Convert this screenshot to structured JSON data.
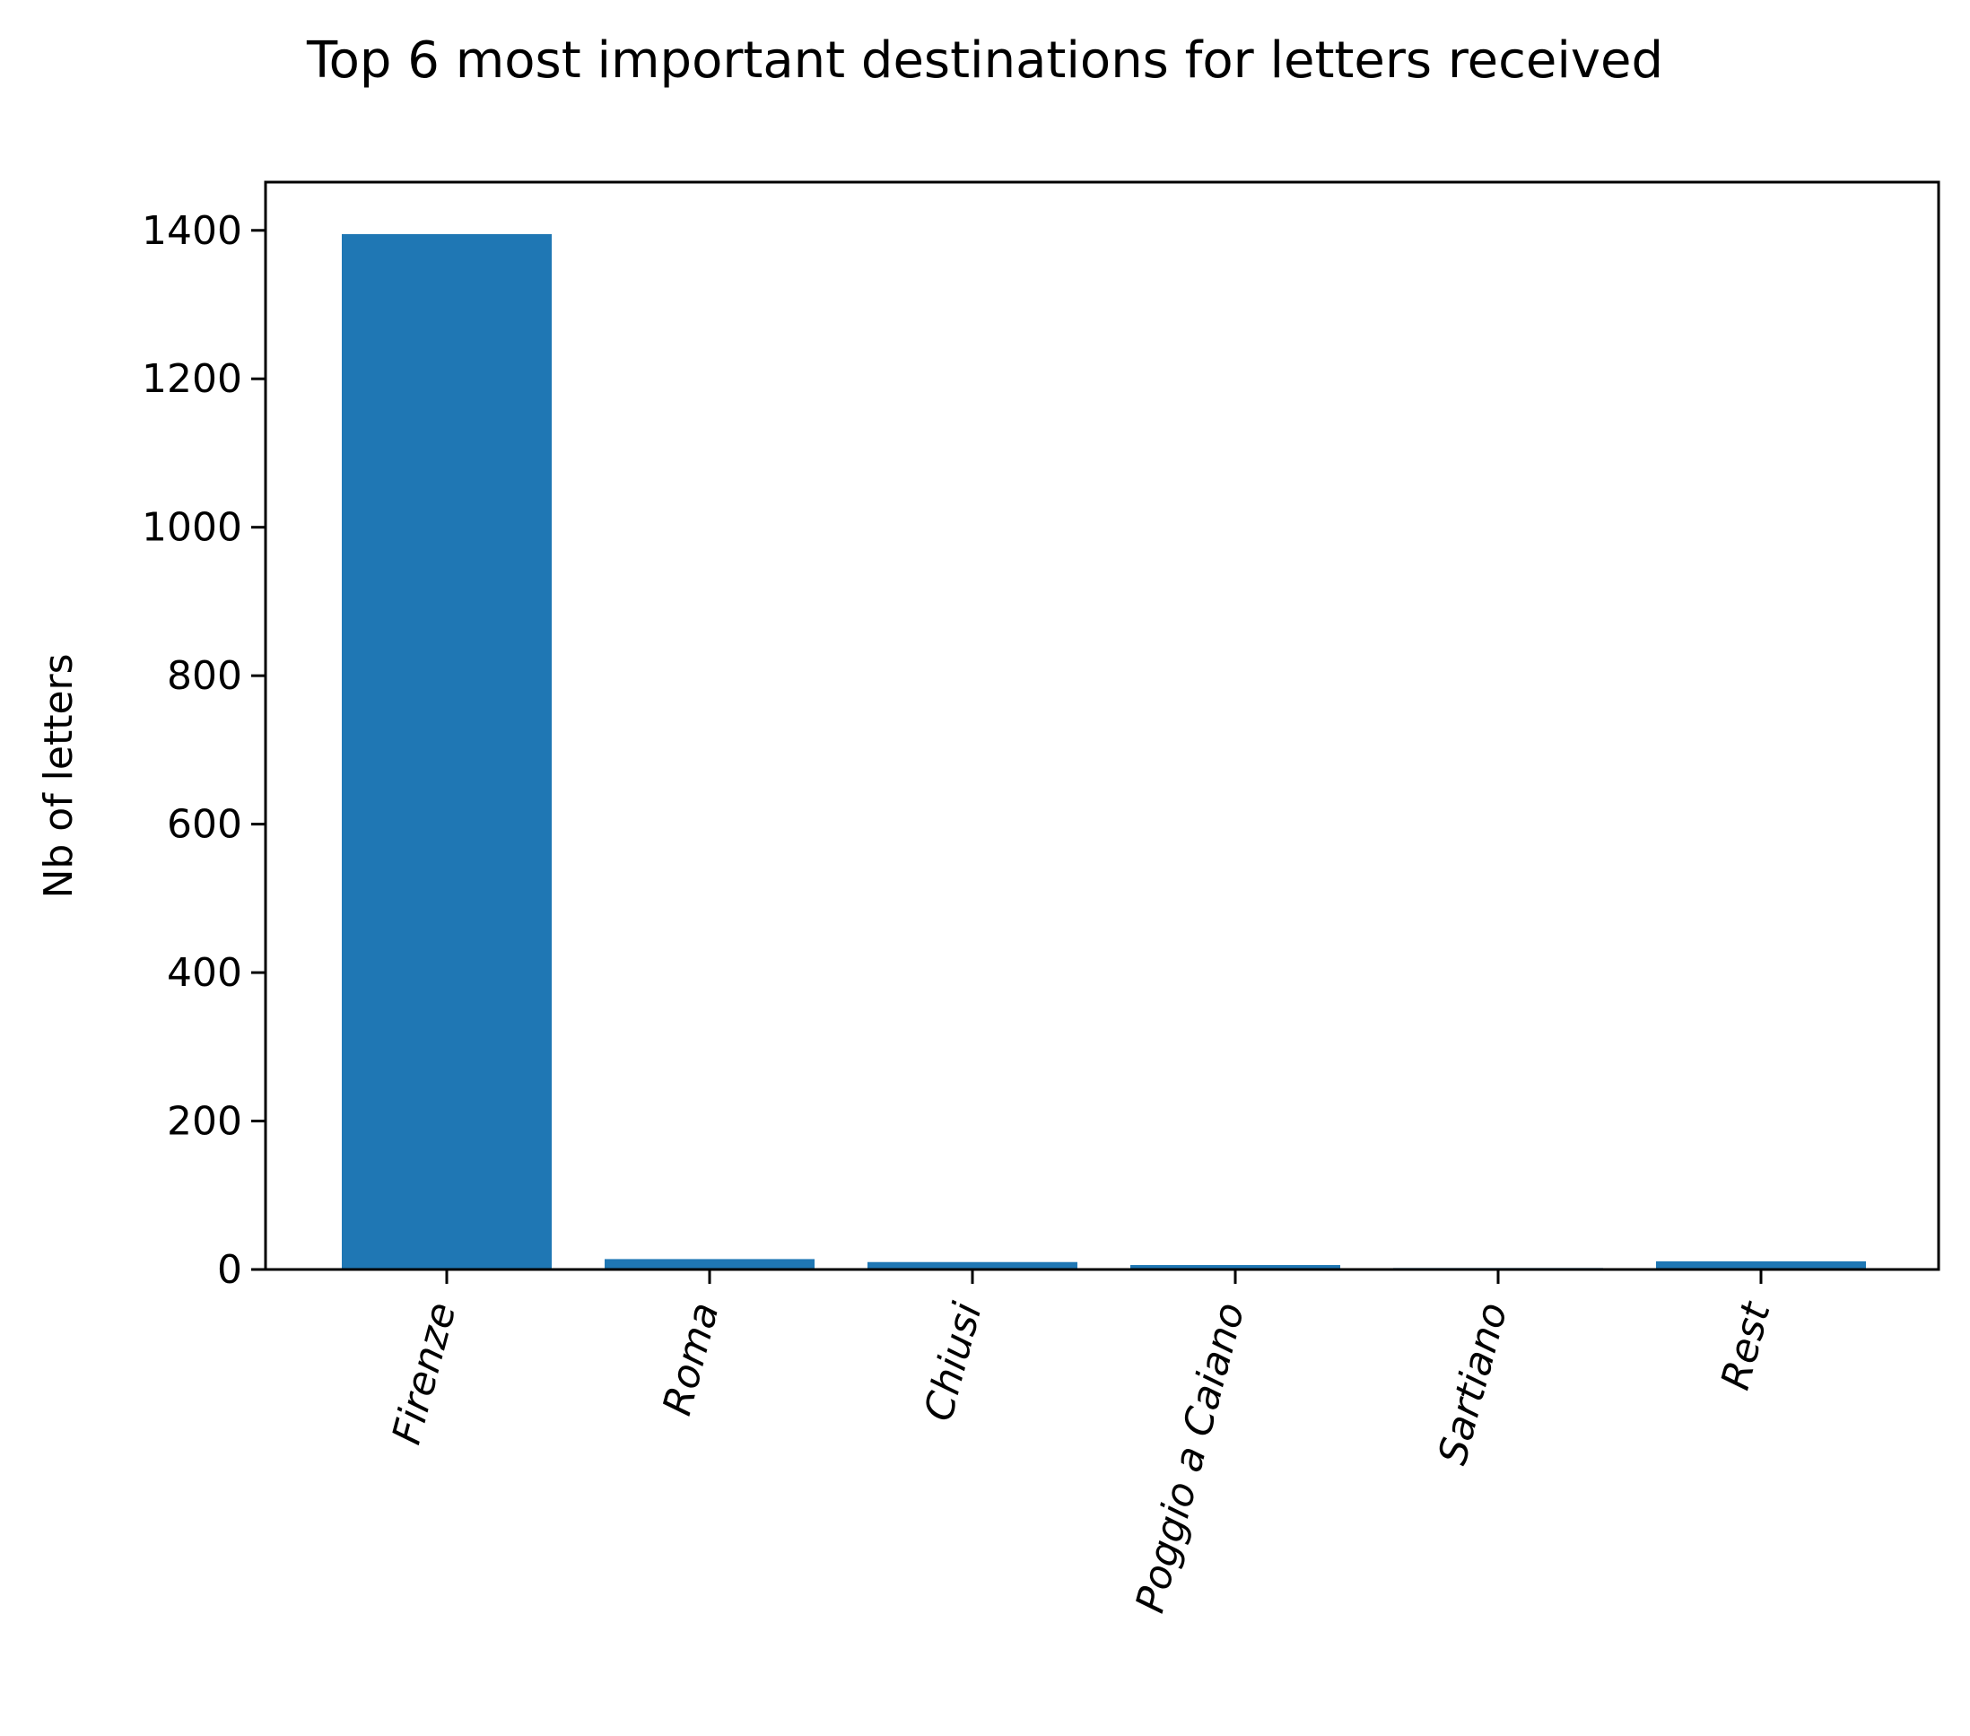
{
  "chart_data": {
    "type": "bar",
    "title": "Top 6 most important destinations for letters received",
    "xlabel": "",
    "ylabel": "Nb of letters",
    "categories": [
      "Firenze",
      "Roma",
      "Chiusi",
      "Poggio a Caiano",
      "Sartiano",
      "Rest"
    ],
    "values": [
      1395,
      14,
      10,
      6,
      2,
      11
    ],
    "ylim": [
      0,
      1465
    ],
    "yticks": [
      0,
      200,
      400,
      600,
      800,
      1000,
      1200,
      1400
    ],
    "x_tick_rotation_deg": 75,
    "bar_color": "#1f77b4",
    "grid": false,
    "legend": "none"
  }
}
